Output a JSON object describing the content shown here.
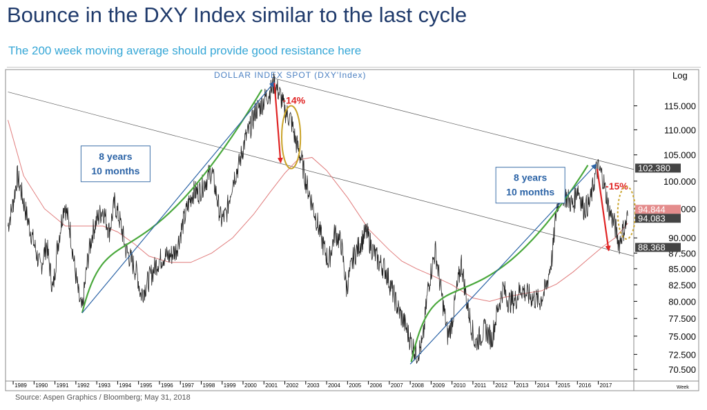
{
  "header": {
    "title": "Bounce in the DXY Index similar to the last cycle",
    "subtitle": "The 200 week moving average should provide good resistance here"
  },
  "footer": {
    "source": "Source: Aspen Graphics / Bloomberg; May 31, 2018"
  },
  "colors": {
    "price": "#222222",
    "moving_average": "#e07b7b",
    "trend_arrow": "#2b63a6",
    "cycle_curve": "#4aa83c",
    "decline_arrow": "#e02424",
    "circle": "#c9a227",
    "channel": "#555555"
  },
  "chart_data": {
    "type": "line",
    "title": "DOLLAR INDEX SPOT (DXY'Index)",
    "scale_label": "Log",
    "frequency_label": "Week",
    "y_scale": "log",
    "ylim": [
      69,
      123
    ],
    "xlim": [
      1988.7,
      2018.7
    ],
    "x_tick_labels": [
      "1989",
      "1990",
      "1991",
      "1992",
      "1993",
      "1994",
      "1995",
      "1996",
      "1997",
      "1998",
      "1999",
      "2000",
      "2001",
      "2002",
      "2003",
      "2004",
      "2005",
      "2006",
      "2007",
      "2008",
      "2009",
      "2010",
      "2011",
      "2012",
      "2013",
      "2014",
      "2015",
      "2016",
      "2017"
    ],
    "y_tick_labels": [
      "70.500",
      "72.500",
      "75.000",
      "77.500",
      "80.000",
      "82.500",
      "85.000",
      "87.500",
      "90.000",
      "95.000",
      "100.000",
      "105.000",
      "110.000",
      "115.000"
    ],
    "series": [
      {
        "kind": "price",
        "x": [
          1988.75,
          1989.0,
          1989.2,
          1989.45,
          1989.7,
          1990.0,
          1990.3,
          1990.6,
          1990.9,
          1991.1,
          1991.45,
          1991.7,
          1991.95,
          1992.15,
          1992.3,
          1992.55,
          1992.8,
          1993.0,
          1993.3,
          1993.6,
          1993.85,
          1994.1,
          1994.4,
          1994.7,
          1994.95,
          1995.1,
          1995.3,
          1995.6,
          1995.9,
          1996.2,
          1996.5,
          1996.8,
          1997.1,
          1997.4,
          1997.6,
          1997.9,
          1998.2,
          1998.5,
          1998.75,
          1998.95,
          1999.2,
          1999.5,
          1999.8,
          2000.1,
          2000.4,
          2000.6,
          2000.85,
          2001.1,
          2001.3,
          2001.5,
          2001.8,
          2002.0,
          2002.3,
          2002.5,
          2002.8,
          2003.0,
          2003.3,
          2003.6,
          2003.9,
          2004.1,
          2004.4,
          2004.7,
          2004.95,
          2005.3,
          2005.6,
          2005.9,
          2006.2,
          2006.5,
          2006.8,
          2007.1,
          2007.4,
          2007.7,
          2008.0,
          2008.3,
          2008.6,
          2008.85,
          2009.2,
          2009.5,
          2009.8,
          2010.0,
          2010.2,
          2010.45,
          2010.7,
          2010.9,
          2011.1,
          2011.35,
          2011.6,
          2011.9,
          2012.2,
          2012.45,
          2012.7,
          2013.0,
          2013.3,
          2013.6,
          2013.9,
          2014.2,
          2014.5,
          2014.8,
          2015.0,
          2015.2,
          2015.5,
          2015.8,
          2016.0,
          2016.3,
          2016.6,
          2016.9,
          2017.0,
          2017.2,
          2017.5,
          2017.8,
          2018.0,
          2018.15,
          2018.3,
          2018.42
        ],
        "y": [
          92,
          96,
          101,
          97,
          93,
          89,
          85,
          89,
          81.5,
          88,
          96,
          92,
          85,
          80.5,
          78.5,
          86,
          91,
          93,
          95,
          91,
          96,
          93,
          88,
          86,
          84,
          81,
          82,
          84,
          86,
          87,
          87,
          88,
          92,
          96,
          98,
          98,
          100,
          102,
          97,
          93,
          94,
          100,
          103,
          108,
          111,
          114,
          115,
          117,
          118,
          120,
          117,
          114,
          112,
          108,
          104,
          100,
          96,
          92,
          88,
          86,
          91,
          89,
          82,
          87,
          89,
          91,
          88,
          86,
          85,
          82,
          79,
          77,
          74.5,
          72.5,
          74,
          82,
          88,
          81,
          75,
          77,
          81,
          86,
          80,
          77,
          74,
          75,
          76,
          74.5,
          79,
          82,
          80,
          80,
          82,
          81,
          80.5,
          80,
          82,
          87,
          95,
          98,
          97,
          95.5,
          99,
          95,
          96,
          102,
          102.3,
          101,
          95,
          92,
          89,
          91,
          92,
          94
        ]
      },
      {
        "name": "200 week moving average",
        "kind": "moving_average",
        "x": [
          1988.75,
          1989.5,
          1990.5,
          1991.5,
          1992.5,
          1993.3,
          1994.0,
          1994.8,
          1995.5,
          1996.5,
          1997.5,
          1998.5,
          1999.5,
          2000.5,
          2001.3,
          2002.0,
          2002.6,
          2003.3,
          2004.0,
          2005.0,
          2006.0,
          2007.0,
          2007.6,
          2008.3,
          2009.0,
          2010.0,
          2011.0,
          2011.8,
          2012.5,
          2013.5,
          2014.3,
          2015.0,
          2015.8,
          2016.5,
          2017.2,
          2017.8,
          2018.42
        ],
        "y": [
          112,
          101,
          95,
          92,
          92,
          92,
          91,
          89,
          87,
          86,
          86,
          87.5,
          90,
          94,
          98,
          101.5,
          104,
          104.5,
          102,
          97,
          91.5,
          88,
          86.2,
          85,
          84,
          82.5,
          80.5,
          80,
          80.6,
          81.2,
          81.6,
          82.6,
          84.5,
          86.5,
          88.5,
          90,
          92.5
        ]
      }
    ],
    "annotations": {
      "cycle_labels": [
        {
          "line1": "8 years",
          "line2": "10 months",
          "x": 1993.9,
          "y": 103
        },
        {
          "line1": "8 years",
          "line2": "10 months",
          "x": 2013.75,
          "y": 99
        }
      ],
      "declines": [
        {
          "label": "-14%",
          "from": [
            2001.5,
            120
          ],
          "to": [
            2001.8,
            103.5
          ]
        },
        {
          "label": "-15%",
          "from": [
            2016.95,
            102.3
          ],
          "to": [
            2017.5,
            87.9
          ]
        }
      ],
      "trend_arrows": [
        {
          "from": [
            1992.3,
            78.3
          ],
          "to": [
            2001.5,
            120.2
          ]
        },
        {
          "from": [
            2008.0,
            71.2
          ],
          "to": [
            2016.9,
            103.2
          ]
        }
      ],
      "cycle_curves": [
        {
          "points": [
            [
              1992.3,
              78.3
            ],
            [
              1993.6,
              95.5
            ],
            [
              1994.9,
              80.5
            ],
            [
              2000.9,
              118.5
            ]
          ]
        },
        {
          "points": [
            [
              2008.05,
              71.5
            ],
            [
              2009.3,
              89.5
            ],
            [
              2011.0,
              73.3
            ],
            [
              2016.5,
              103.0
            ]
          ]
        }
      ],
      "circles": [
        {
          "x": 2002.3,
          "y": 108.5,
          "rx_years": 0.45,
          "ry_value_pct": 0.06,
          "style": "solid"
        },
        {
          "x": 2018.35,
          "y": 94.3,
          "rx_years": 0.42,
          "ry_value_pct": 0.05,
          "style": "dashed"
        }
      ],
      "channel_lines": [
        {
          "from": [
            1988.75,
            118
          ],
          "to": [
            2018.7,
            87
          ]
        },
        {
          "from": [
            2001.5,
            121
          ],
          "to": [
            2018.7,
            102.2
          ]
        }
      ],
      "value_tags": [
        {
          "value": 102.38,
          "label": "102.380",
          "bg": "#444444",
          "fg": "#ffffff"
        },
        {
          "value": 94.844,
          "label": "94.844",
          "bg": "#e48c8c",
          "fg": "#ffffff"
        },
        {
          "value": 94.083,
          "label": "94.083",
          "bg": "#444444",
          "fg": "#ffffff"
        },
        {
          "value": 88.368,
          "label": "88.368",
          "bg": "#444444",
          "fg": "#ffffff"
        }
      ]
    }
  }
}
